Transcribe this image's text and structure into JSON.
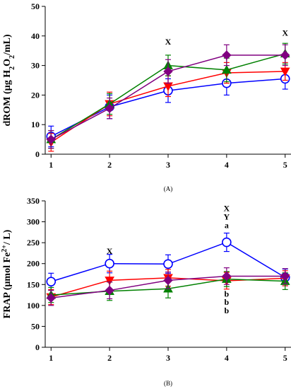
{
  "chart_data": [
    {
      "type": "line",
      "panel_label": "(A)",
      "ylabel": "dROM (µg H₂O₂/mL)",
      "ylabel_parts": [
        {
          "t": "dROM (µg H",
          "s": ""
        },
        {
          "t": "2",
          "s": "sub"
        },
        {
          "t": "O",
          "s": ""
        },
        {
          "t": "2",
          "s": "sub"
        },
        {
          "t": "/mL)",
          "s": ""
        }
      ],
      "x": [
        1,
        2,
        3,
        4,
        5
      ],
      "xlim": [
        0.9,
        5.1
      ],
      "ylim": [
        0,
        50
      ],
      "yticks": [
        0,
        10,
        20,
        30,
        40,
        50
      ],
      "grid": false,
      "series": [
        {
          "color": "#0000ff",
          "marker": "circle-open",
          "values": [
            6,
            16,
            21.5,
            24,
            25.5
          ],
          "err": [
            3.5,
            4,
            4,
            4,
            3.5
          ]
        },
        {
          "color": "#ff0000",
          "marker": "triangle-down",
          "values": [
            4,
            17,
            23,
            27.5,
            28
          ],
          "err": [
            3,
            4,
            3.5,
            3.5,
            3
          ]
        },
        {
          "color": "#008000",
          "marker": "triangle-up",
          "values": [
            5,
            17,
            30,
            28.5,
            34
          ],
          "err": [
            3,
            3.5,
            3.5,
            4,
            3.5
          ]
        },
        {
          "color": "#800080",
          "marker": "diamond",
          "values": [
            5,
            15.5,
            28,
            33.5,
            33.5
          ],
          "err": [
            3,
            3.5,
            4,
            3.5,
            3.5
          ]
        }
      ],
      "annotations": [
        {
          "x": 3,
          "y": 38,
          "text": "X"
        },
        {
          "x": 5,
          "y": 41,
          "text": "X"
        }
      ]
    },
    {
      "type": "line",
      "panel_label": "(B)",
      "ylabel": "FRAP (µmol Fe²⁺/ L)",
      "ylabel_parts": [
        {
          "t": "FRAP (µmol Fe",
          "s": ""
        },
        {
          "t": "2+",
          "s": "sup"
        },
        {
          "t": "/ L)",
          "s": ""
        }
      ],
      "x": [
        1,
        2,
        3,
        4,
        5
      ],
      "xlim": [
        0.9,
        5.1
      ],
      "ylim": [
        0,
        350
      ],
      "yticks": [
        0,
        50,
        100,
        150,
        200,
        250,
        300,
        350
      ],
      "grid": false,
      "series": [
        {
          "color": "#0000ff",
          "marker": "circle-open",
          "values": [
            157,
            200,
            199,
            251,
            167
          ],
          "err": [
            20,
            22,
            22,
            22,
            20
          ]
        },
        {
          "color": "#ff0000",
          "marker": "triangle-down",
          "values": [
            120,
            160,
            166,
            159,
            165
          ],
          "err": [
            18,
            22,
            20,
            20,
            18
          ]
        },
        {
          "color": "#008000",
          "marker": "triangle-up",
          "values": [
            125,
            134,
            140,
            163,
            158
          ],
          "err": [
            18,
            22,
            22,
            18,
            20
          ]
        },
        {
          "color": "#800080",
          "marker": "diamond",
          "values": [
            118,
            136,
            160,
            170,
            170
          ],
          "err": [
            18,
            20,
            20,
            20,
            18
          ]
        }
      ],
      "annotations": [
        {
          "x": 2,
          "y": 230,
          "text": "X"
        },
        {
          "x": 4,
          "y": 332,
          "text": "X"
        },
        {
          "x": 4,
          "y": 312,
          "text": "Y"
        },
        {
          "x": 4,
          "y": 292,
          "text": "a"
        },
        {
          "x": 4,
          "y": 128,
          "text": "b"
        },
        {
          "x": 4,
          "y": 108,
          "text": "b"
        },
        {
          "x": 4,
          "y": 88,
          "text": "b"
        }
      ]
    }
  ]
}
